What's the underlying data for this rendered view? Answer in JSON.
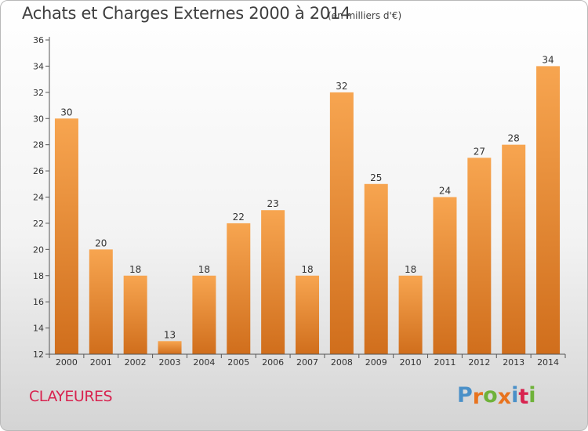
{
  "chart_data": {
    "type": "bar",
    "title": "Achats et Charges Externes 2000 à 2014",
    "subtitle": "(en milliers d'€)",
    "xlabel": "",
    "ylabel": "",
    "categories": [
      "2000",
      "2001",
      "2002",
      "2003",
      "2004",
      "2005",
      "2006",
      "2007",
      "2008",
      "2009",
      "2010",
      "2011",
      "2012",
      "2013",
      "2014"
    ],
    "values": [
      30,
      20,
      18,
      13,
      18,
      22,
      23,
      18,
      32,
      25,
      18,
      24,
      27,
      28,
      34
    ],
    "ylim": [
      12,
      36
    ],
    "yticks": [
      12,
      14,
      16,
      18,
      20,
      22,
      24,
      26,
      28,
      30,
      32,
      34,
      36
    ],
    "grid": false,
    "legend": "none",
    "colors": {
      "bar_light": "#f7a550",
      "bar_dark": "#d06e1c",
      "axis": "#555555",
      "text": "#3f3f3f"
    }
  },
  "footer": {
    "commune": "CLAYEURES",
    "logo_letters": [
      "P",
      "r",
      "o",
      "x",
      "i",
      "t",
      "i"
    ],
    "logo_colors": [
      "#4a90c8",
      "#e8731e",
      "#6fb23a",
      "#e8731e",
      "#4a90c8",
      "#d8234f",
      "#6fb23a"
    ],
    "commune_color": "#d8234f"
  }
}
